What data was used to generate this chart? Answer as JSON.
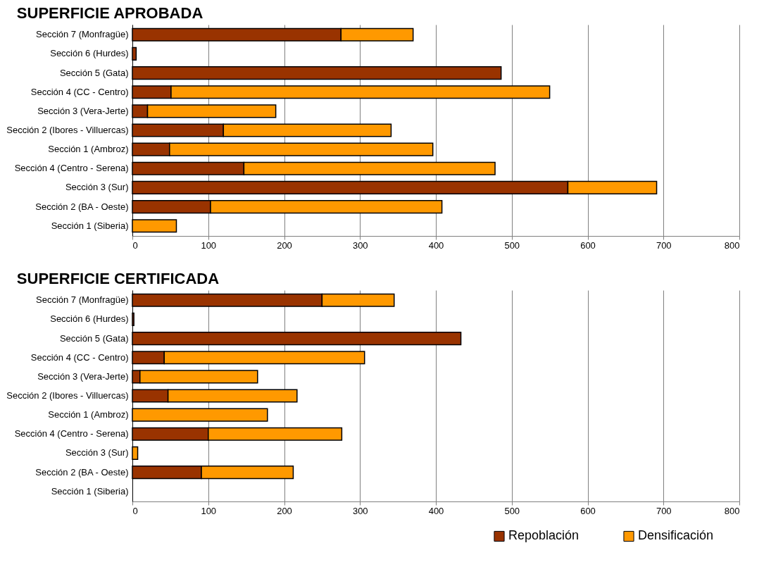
{
  "chart_data": [
    {
      "type": "bar",
      "orientation": "horizontal",
      "stacked": true,
      "title": "SUPERFICIE APROBADA",
      "categories": [
        "Sección 7 (Monfragüe)",
        "Sección 6 (Hurdes)",
        "Sección 5 (Gata)",
        "Sección 4 (CC - Centro)",
        "Sección 3 (Vera-Jerte)",
        "Sección 2 (Ibores - Villuercas)",
        "Sección 1 (Ambroz)",
        "Sección 4 (Centro - Serena)",
        "Sección 3 (Sur)",
        "Sección 2 (BA - Oeste)",
        "Sección 1 (Siberia)"
      ],
      "series": [
        {
          "color": "#993300",
          "values": [
            275,
            5,
            486,
            51,
            20,
            120,
            49,
            147,
            574,
            103,
            null
          ]
        },
        {
          "color": "#ff9900",
          "values": [
            95,
            null,
            null,
            499,
            169,
            221,
            347,
            331,
            117,
            305,
            58
          ]
        }
      ],
      "xlim": [
        0,
        800
      ],
      "xticks": [
        0,
        100,
        200,
        300,
        400,
        500,
        600,
        700,
        800
      ],
      "grid": "x"
    },
    {
      "type": "bar",
      "orientation": "horizontal",
      "stacked": true,
      "title": "SUPERFICIE CERTIFICADA",
      "categories": [
        "Sección 7 (Monfragüe)",
        "Sección 6 (Hurdes)",
        "Sección 5 (Gata)",
        "Sección 4 (CC - Centro)",
        "Sección 3 (Vera-Jerte)",
        "Sección 2 (Ibores - Villuercas)",
        "Sección 1 (Ambroz)",
        "Sección 4 (Centro - Serena)",
        "Sección 3 (Sur)",
        "Sección 2 (BA - Oeste)",
        "Sección 1 (Siberia)"
      ],
      "series": [
        {
          "name": "Repoblación",
          "color": "#993300",
          "values": [
            250,
            2,
            433,
            42,
            10,
            47,
            null,
            100,
            null,
            91,
            null
          ]
        },
        {
          "name": "Densificación",
          "color": "#ff9900",
          "values": [
            95,
            null,
            null,
            264,
            155,
            170,
            178,
            176,
            7,
            121,
            null
          ]
        }
      ],
      "xlim": [
        0,
        800
      ],
      "xticks": [
        0,
        100,
        200,
        300,
        400,
        500,
        600,
        700,
        800
      ],
      "grid": "x",
      "legend": "bottom right"
    }
  ]
}
